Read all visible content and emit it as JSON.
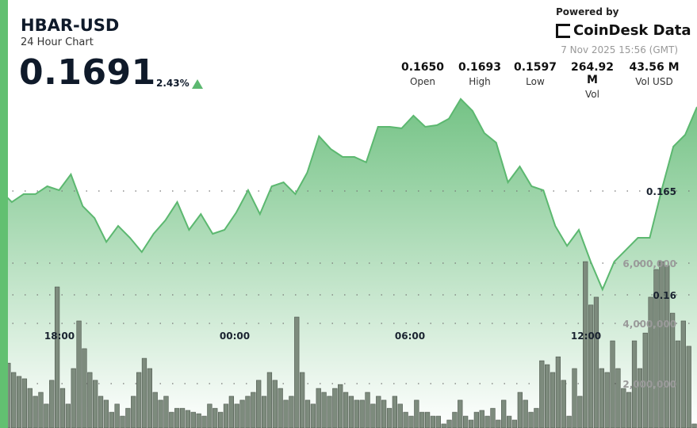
{
  "header": {
    "symbol": "HBAR-USD",
    "subtitle": "24 Hour Chart",
    "price": "0.1691",
    "change": "2.43%",
    "change_direction": "up"
  },
  "branding": {
    "powered_by": "Powered by",
    "brand": "CoinDesk Data",
    "timestamp": "7 Nov 2025 15:56 (GMT)"
  },
  "stats": [
    {
      "value": "0.1650",
      "label": "Open"
    },
    {
      "value": "0.1693",
      "label": "High"
    },
    {
      "value": "0.1597",
      "label": "Low"
    },
    {
      "value": "264.92 M",
      "label": "Vol"
    },
    {
      "value": "43.56 M",
      "label": "Vol USD"
    }
  ],
  "colors": {
    "accent": "#62c071",
    "line": "#5cb870",
    "bars": "#7d8b7d",
    "up": "#5cb870"
  },
  "chart_data": {
    "type": "line",
    "x_tick_labels": [
      "18:00",
      "00:00",
      "06:00",
      "12:00"
    ],
    "price_ticks": [
      0.165,
      0.16
    ],
    "price_tick_labels": [
      "0.165",
      "0.16"
    ],
    "volume_ticks": [
      2000000,
      4000000,
      6000000
    ],
    "volume_tick_labels": [
      "2,000,000",
      "4,000,000",
      "6,000,000"
    ],
    "grid": true,
    "price": [
      0.16504,
      0.16447,
      0.16485,
      0.16485,
      0.16523,
      0.16504,
      0.1658,
      0.16427,
      0.1637,
      0.16255,
      0.16332,
      0.16275,
      0.16206,
      0.16294,
      0.16359,
      0.16447,
      0.16313,
      0.16389,
      0.16294,
      0.16313,
      0.16397,
      0.16504,
      0.16389,
      0.16523,
      0.16542,
      0.16485,
      0.16588,
      0.16764,
      0.16702,
      0.16664,
      0.16664,
      0.16638,
      0.16809,
      0.16809,
      0.16802,
      0.16863,
      0.16809,
      0.16817,
      0.16848,
      0.16943,
      0.16886,
      0.16779,
      0.16733,
      0.16542,
      0.16618,
      0.16523,
      0.16504,
      0.16332,
      0.16236,
      0.16313,
      0.1616,
      0.16026,
      0.1616,
      0.16217,
      0.16275,
      0.16275,
      0.16504,
      0.16714,
      0.16771,
      0.16905
    ],
    "volume_millions": [
      1.26,
      2.68,
      2.37,
      2.24,
      2.16,
      1.84,
      1.58,
      1.71,
      1.32,
      2.11,
      5.21,
      1.84,
      1.32,
      2.5,
      4.08,
      3.16,
      2.37,
      2.11,
      1.58,
      1.45,
      1.05,
      1.32,
      0.92,
      1.18,
      1.58,
      2.37,
      2.84,
      2.5,
      1.71,
      1.45,
      1.58,
      1.05,
      1.18,
      1.18,
      1.11,
      1.05,
      1.0,
      0.92,
      1.32,
      1.18,
      1.05,
      1.32,
      1.58,
      1.32,
      1.45,
      1.58,
      1.71,
      2.11,
      1.58,
      2.37,
      2.11,
      1.84,
      1.45,
      1.58,
      4.21,
      2.37,
      1.45,
      1.32,
      1.84,
      1.71,
      1.58,
      1.84,
      1.97,
      1.71,
      1.58,
      1.45,
      1.45,
      1.71,
      1.32,
      1.58,
      1.45,
      1.18,
      1.58,
      1.32,
      1.05,
      0.92,
      1.45,
      1.05,
      1.05,
      0.92,
      0.92,
      0.66,
      0.79,
      1.05,
      1.45,
      0.92,
      0.79,
      1.05,
      1.11,
      0.92,
      1.18,
      0.79,
      1.45,
      0.92,
      0.79,
      1.71,
      1.45,
      1.05,
      1.18,
      2.76,
      2.63,
      2.37,
      2.89,
      2.11,
      0.92,
      2.5,
      1.58,
      6.05,
      4.61,
      4.87,
      2.5,
      2.37,
      3.42,
      2.5,
      1.84,
      1.71,
      3.42,
      2.5,
      3.68,
      4.87,
      5.79,
      6.05,
      5.92,
      4.34,
      3.42,
      4.08,
      3.24,
      0.66
    ]
  }
}
